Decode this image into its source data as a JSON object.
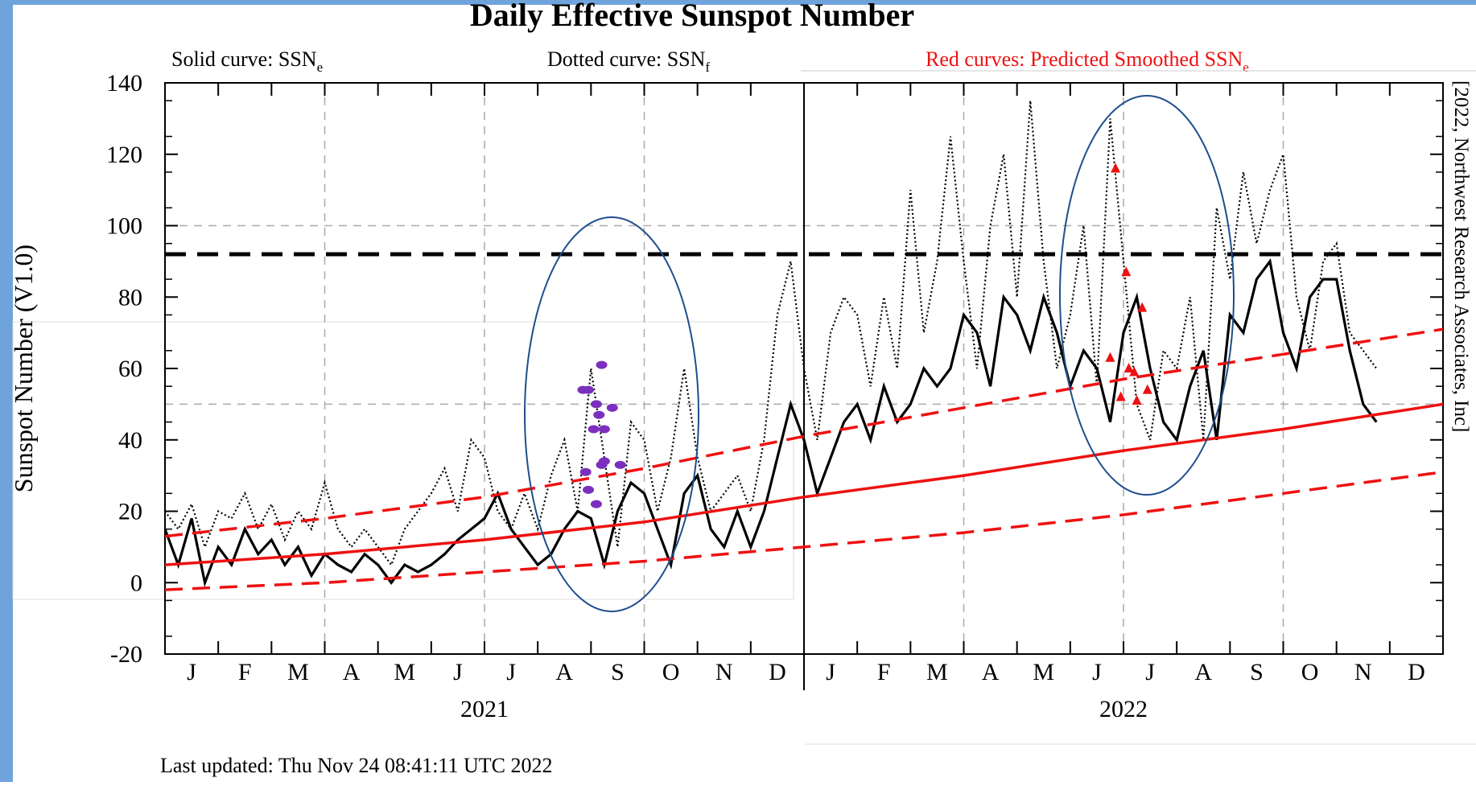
{
  "chart_data": {
    "type": "line",
    "title": "Daily Effective Sunspot Number",
    "notes": [
      {
        "text": "Solid curve: SSN",
        "sub": "e",
        "color": "#000000"
      },
      {
        "text": "Dotted curve: SSN",
        "sub": "f",
        "color": "#000000"
      },
      {
        "text": "Red curves: Predicted Smoothed SSN",
        "sub": "e",
        "color": "#ee1111"
      }
    ],
    "y_label": "Sunspot Number (V1.0)",
    "credit": "[2022, Northwest Research Associates, Inc]",
    "footer": "Last updated: Thu Nov 24 08:41:11 UTC 2022",
    "categories": [
      "J",
      "F",
      "M",
      "A",
      "M",
      "J",
      "J",
      "A",
      "S",
      "O",
      "N",
      "D",
      "J",
      "F",
      "M",
      "A",
      "M",
      "J",
      "J",
      "A",
      "S",
      "O",
      "N",
      "D"
    ],
    "years": [
      "2021",
      "2022"
    ],
    "xlim": [
      0,
      24
    ],
    "ylim": [
      -20,
      140
    ],
    "yticks": [
      -20,
      0,
      20,
      40,
      60,
      80,
      100,
      120,
      140
    ],
    "xgrid": [
      3,
      6,
      9,
      15,
      18,
      21
    ],
    "ygrid": [
      50,
      100
    ],
    "year_divider": 12,
    "reference_line": 92,
    "series": [
      {
        "style": "solid",
        "color": "#000000",
        "x": [
          0,
          0.25,
          0.5,
          0.75,
          1,
          1.25,
          1.5,
          1.75,
          2,
          2.25,
          2.5,
          2.75,
          3,
          3.25,
          3.5,
          3.75,
          4,
          4.25,
          4.5,
          4.75,
          5,
          5.25,
          5.5,
          5.75,
          6,
          6.25,
          6.5,
          6.75,
          7,
          7.25,
          7.5,
          7.75,
          8,
          8.25,
          8.5,
          8.75,
          9,
          9.25,
          9.5,
          9.75,
          10,
          10.25,
          10.5,
          10.75,
          11,
          11.25,
          11.5,
          11.75,
          12,
          12.25,
          12.5,
          12.75,
          13,
          13.25,
          13.5,
          13.75,
          14,
          14.25,
          14.5,
          14.75,
          15,
          15.25,
          15.5,
          15.75,
          16,
          16.25,
          16.5,
          16.75,
          17,
          17.25,
          17.5,
          17.75,
          18,
          18.25,
          18.5,
          18.75,
          19,
          19.25,
          19.5,
          19.75,
          20,
          20.25,
          20.5,
          20.75,
          21,
          21.25,
          21.5,
          21.75,
          22,
          22.25,
          22.5,
          22.75
        ],
        "values": [
          15,
          5,
          18,
          0,
          10,
          5,
          15,
          8,
          12,
          5,
          10,
          2,
          8,
          5,
          3,
          8,
          5,
          0,
          5,
          3,
          5,
          8,
          12,
          15,
          18,
          25,
          15,
          10,
          5,
          8,
          15,
          20,
          18,
          5,
          20,
          28,
          25,
          15,
          5,
          25,
          30,
          15,
          10,
          20,
          10,
          20,
          35,
          50,
          40,
          25,
          35,
          45,
          50,
          40,
          55,
          45,
          50,
          60,
          55,
          60,
          75,
          70,
          55,
          80,
          75,
          65,
          80,
          70,
          55,
          65,
          60,
          45,
          70,
          80,
          60,
          45,
          40,
          55,
          65,
          40,
          75,
          70,
          85,
          90,
          70,
          60,
          80,
          85,
          85,
          65,
          50,
          45
        ]
      },
      {
        "style": "dotted",
        "color": "#000000",
        "x": [
          0,
          0.25,
          0.5,
          0.75,
          1,
          1.25,
          1.5,
          1.75,
          2,
          2.25,
          2.5,
          2.75,
          3,
          3.25,
          3.5,
          3.75,
          4,
          4.25,
          4.5,
          4.75,
          5,
          5.25,
          5.5,
          5.75,
          6,
          6.25,
          6.5,
          6.75,
          7,
          7.25,
          7.5,
          7.75,
          8,
          8.25,
          8.5,
          8.75,
          9,
          9.25,
          9.5,
          9.75,
          10,
          10.25,
          10.5,
          10.75,
          11,
          11.25,
          11.5,
          11.75,
          12,
          12.25,
          12.5,
          12.75,
          13,
          13.25,
          13.5,
          13.75,
          14,
          14.25,
          14.5,
          14.75,
          15,
          15.25,
          15.5,
          15.75,
          16,
          16.25,
          16.5,
          16.75,
          17,
          17.25,
          17.5,
          17.75,
          18,
          18.25,
          18.5,
          18.75,
          19,
          19.25,
          19.5,
          19.75,
          20,
          20.25,
          20.5,
          20.75,
          21,
          21.25,
          21.5,
          21.75,
          22,
          22.25,
          22.5,
          22.75
        ],
        "values": [
          20,
          15,
          22,
          10,
          20,
          18,
          25,
          15,
          22,
          12,
          20,
          15,
          28,
          15,
          10,
          15,
          10,
          5,
          15,
          20,
          25,
          32,
          20,
          40,
          35,
          20,
          15,
          25,
          15,
          30,
          40,
          20,
          60,
          35,
          10,
          45,
          40,
          20,
          35,
          60,
          35,
          20,
          25,
          30,
          20,
          40,
          75,
          90,
          60,
          40,
          70,
          80,
          75,
          55,
          80,
          60,
          110,
          70,
          90,
          125,
          90,
          60,
          100,
          120,
          80,
          135,
          90,
          60,
          75,
          100,
          55,
          130,
          90,
          50,
          40,
          65,
          60,
          80,
          40,
          105,
          85,
          115,
          95,
          110,
          120,
          80,
          65,
          90,
          95,
          70,
          65,
          60
        ]
      },
      {
        "style": "solid",
        "color": "#ee1111",
        "x": [
          0,
          3,
          6,
          9,
          12,
          15,
          18,
          21,
          24
        ],
        "values": [
          5,
          8,
          12,
          17,
          24,
          30,
          37,
          43,
          50
        ]
      },
      {
        "style": "dashed",
        "color": "#ee1111",
        "x": [
          0,
          3,
          6,
          9,
          12,
          15,
          18,
          21,
          24
        ],
        "values": [
          13,
          18,
          24,
          32,
          41,
          49,
          57,
          64,
          71
        ]
      },
      {
        "style": "dashed",
        "color": "#ee1111",
        "x": [
          0,
          3,
          6,
          9,
          12,
          15,
          18,
          21,
          24
        ],
        "values": [
          -2,
          0,
          3,
          6,
          10,
          14,
          19,
          25,
          31
        ]
      }
    ],
    "points": [
      {
        "marker": "dot",
        "color": "#7b2fbf",
        "x": [
          7.95,
          8.2,
          7.85,
          8.15,
          8.1,
          8.25,
          8.4,
          8.05,
          8.2,
          7.9,
          8.25,
          8.55,
          7.95,
          8.1
        ],
        "values": [
          54,
          61,
          54,
          47,
          50,
          43,
          49,
          43,
          33,
          31,
          34,
          33,
          26,
          22
        ]
      },
      {
        "marker": "triangle",
        "color": "#ee1111",
        "x": [
          17.85,
          18.05,
          18.35,
          17.75,
          18.1,
          18.2,
          17.95,
          18.25,
          18.45
        ],
        "values": [
          116,
          87,
          77,
          63,
          60,
          59,
          52,
          51,
          54
        ]
      }
    ]
  }
}
